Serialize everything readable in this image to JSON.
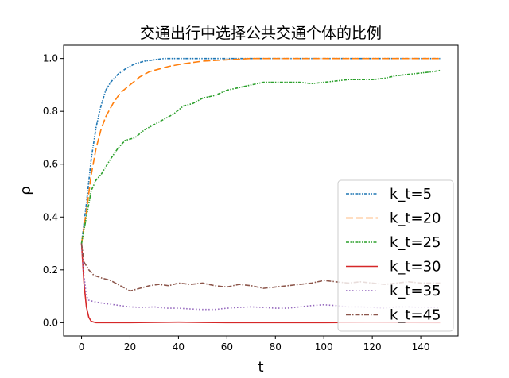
{
  "chart_data": {
    "type": "line",
    "title": "交通出行中选择公共交通个体的比例",
    "xlabel": "t",
    "ylabel": "ρ",
    "xlim": [
      -7.4,
      155.4
    ],
    "ylim": [
      -0.05,
      1.05
    ],
    "xticks": [
      0,
      20,
      40,
      60,
      80,
      100,
      120,
      140
    ],
    "yticks": [
      0.0,
      0.2,
      0.4,
      0.6,
      0.8,
      1.0
    ],
    "xtick_labels": [
      "0",
      "20",
      "40",
      "60",
      "80",
      "100",
      "120",
      "140"
    ],
    "ytick_labels": [
      "0.0",
      "0.2",
      "0.4",
      "0.6",
      "0.8",
      "1.0"
    ],
    "grid": false,
    "legend_position": "lower-right",
    "series": [
      {
        "name": "k_t=5",
        "color": "#1f77b4",
        "style": "dashdotdot",
        "points": [
          [
            0,
            0.3
          ],
          [
            2,
            0.45
          ],
          [
            4,
            0.62
          ],
          [
            6,
            0.74
          ],
          [
            8,
            0.82
          ],
          [
            10,
            0.88
          ],
          [
            12,
            0.91
          ],
          [
            15,
            0.94
          ],
          [
            18,
            0.96
          ],
          [
            22,
            0.98
          ],
          [
            26,
            0.99
          ],
          [
            30,
            0.995
          ],
          [
            34,
            1.0
          ],
          [
            60,
            1.0
          ],
          [
            100,
            1.0
          ],
          [
            148,
            1.0
          ]
        ]
      },
      {
        "name": "k_t=20",
        "color": "#ff7f0e",
        "style": "longdash",
        "points": [
          [
            0,
            0.3
          ],
          [
            2,
            0.42
          ],
          [
            4,
            0.56
          ],
          [
            6,
            0.66
          ],
          [
            8,
            0.73
          ],
          [
            10,
            0.78
          ],
          [
            13,
            0.83
          ],
          [
            16,
            0.87
          ],
          [
            20,
            0.9
          ],
          [
            24,
            0.93
          ],
          [
            28,
            0.95
          ],
          [
            32,
            0.96
          ],
          [
            36,
            0.97
          ],
          [
            42,
            0.98
          ],
          [
            50,
            0.99
          ],
          [
            60,
            0.995
          ],
          [
            70,
            1.0
          ],
          [
            100,
            1.0
          ],
          [
            148,
            1.0
          ]
        ]
      },
      {
        "name": "k_t=25",
        "color": "#2ca02c",
        "style": "dashdotdot",
        "points": [
          [
            0,
            0.3
          ],
          [
            2,
            0.4
          ],
          [
            4,
            0.5
          ],
          [
            6,
            0.54
          ],
          [
            8,
            0.56
          ],
          [
            10,
            0.59
          ],
          [
            12,
            0.62
          ],
          [
            15,
            0.66
          ],
          [
            18,
            0.69
          ],
          [
            22,
            0.7
          ],
          [
            26,
            0.73
          ],
          [
            30,
            0.75
          ],
          [
            34,
            0.77
          ],
          [
            38,
            0.79
          ],
          [
            42,
            0.82
          ],
          [
            46,
            0.83
          ],
          [
            50,
            0.85
          ],
          [
            55,
            0.86
          ],
          [
            60,
            0.88
          ],
          [
            65,
            0.89
          ],
          [
            70,
            0.9
          ],
          [
            75,
            0.91
          ],
          [
            80,
            0.91
          ],
          [
            85,
            0.91
          ],
          [
            90,
            0.91
          ],
          [
            95,
            0.905
          ],
          [
            100,
            0.91
          ],
          [
            105,
            0.915
          ],
          [
            110,
            0.92
          ],
          [
            115,
            0.92
          ],
          [
            120,
            0.92
          ],
          [
            125,
            0.925
          ],
          [
            130,
            0.935
          ],
          [
            135,
            0.94
          ],
          [
            140,
            0.945
          ],
          [
            145,
            0.95
          ],
          [
            148,
            0.955
          ]
        ]
      },
      {
        "name": "k_t=30",
        "color": "#d62728",
        "style": "solid",
        "points": [
          [
            0,
            0.3
          ],
          [
            1,
            0.15
          ],
          [
            2,
            0.06
          ],
          [
            3,
            0.02
          ],
          [
            4,
            0.005
          ],
          [
            6,
            0.0
          ],
          [
            20,
            0.0
          ],
          [
            40,
            0.002
          ],
          [
            60,
            0.0
          ],
          [
            80,
            0.0
          ],
          [
            100,
            0.0
          ],
          [
            120,
            0.001
          ],
          [
            148,
            0.0
          ]
        ]
      },
      {
        "name": "k_t=35",
        "color": "#9467bd",
        "style": "dotted",
        "points": [
          [
            0,
            0.3
          ],
          [
            1,
            0.18
          ],
          [
            2,
            0.1
          ],
          [
            3,
            0.085
          ],
          [
            5,
            0.08
          ],
          [
            8,
            0.075
          ],
          [
            12,
            0.07
          ],
          [
            16,
            0.065
          ],
          [
            20,
            0.06
          ],
          [
            25,
            0.058
          ],
          [
            30,
            0.06
          ],
          [
            35,
            0.055
          ],
          [
            40,
            0.055
          ],
          [
            45,
            0.052
          ],
          [
            50,
            0.05
          ],
          [
            55,
            0.05
          ],
          [
            60,
            0.055
          ],
          [
            65,
            0.058
          ],
          [
            70,
            0.06
          ],
          [
            75,
            0.058
          ],
          [
            80,
            0.055
          ],
          [
            85,
            0.055
          ],
          [
            90,
            0.06
          ],
          [
            95,
            0.065
          ],
          [
            100,
            0.068
          ],
          [
            105,
            0.065
          ],
          [
            110,
            0.06
          ],
          [
            115,
            0.06
          ],
          [
            120,
            0.058
          ],
          [
            125,
            0.055
          ],
          [
            130,
            0.06
          ],
          [
            135,
            0.06
          ],
          [
            140,
            0.058
          ],
          [
            148,
            0.058
          ]
        ]
      },
      {
        "name": "k_t=45",
        "color": "#8c564b",
        "style": "dashdot",
        "points": [
          [
            0,
            0.3
          ],
          [
            1,
            0.23
          ],
          [
            3,
            0.2
          ],
          [
            5,
            0.18
          ],
          [
            8,
            0.17
          ],
          [
            12,
            0.16
          ],
          [
            15,
            0.145
          ],
          [
            18,
            0.13
          ],
          [
            20,
            0.12
          ],
          [
            24,
            0.13
          ],
          [
            28,
            0.14
          ],
          [
            32,
            0.145
          ],
          [
            36,
            0.14
          ],
          [
            40,
            0.15
          ],
          [
            45,
            0.145
          ],
          [
            50,
            0.15
          ],
          [
            55,
            0.14
          ],
          [
            60,
            0.135
          ],
          [
            65,
            0.145
          ],
          [
            70,
            0.14
          ],
          [
            75,
            0.13
          ],
          [
            80,
            0.135
          ],
          [
            85,
            0.14
          ],
          [
            90,
            0.145
          ],
          [
            95,
            0.15
          ],
          [
            100,
            0.16
          ],
          [
            105,
            0.155
          ],
          [
            110,
            0.15
          ],
          [
            115,
            0.155
          ],
          [
            120,
            0.15
          ],
          [
            125,
            0.145
          ],
          [
            130,
            0.15
          ],
          [
            135,
            0.155
          ],
          [
            140,
            0.15
          ],
          [
            148,
            0.15
          ]
        ]
      }
    ]
  }
}
